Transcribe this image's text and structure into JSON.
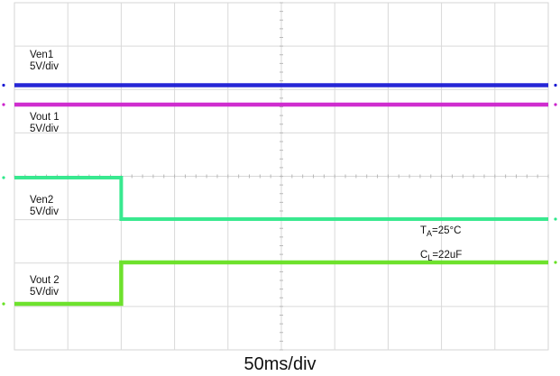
{
  "chart_data": {
    "type": "line",
    "title": "",
    "time_scale": "50ms/div",
    "xlim": [
      0,
      500
    ],
    "x_unit": "ms",
    "grid": true,
    "divisions": {
      "x": 10,
      "y": 8
    },
    "series": [
      {
        "name": "Ven1",
        "scale": "5V/div",
        "color": "#1a1ad4",
        "x": [
          0,
          500
        ],
        "y": [
          5,
          5
        ]
      },
      {
        "name": "Vout 1",
        "scale": "5V/div",
        "color": "#cc22cc",
        "x": [
          0,
          500
        ],
        "y": [
          5,
          5
        ]
      },
      {
        "name": "Ven2",
        "scale": "5V/div",
        "color": "#2ee88a",
        "x": [
          0,
          100,
          100,
          500
        ],
        "y": [
          5,
          5,
          0,
          0
        ]
      },
      {
        "name": "Vout 2",
        "scale": "5V/div",
        "color": "#66e022",
        "x": [
          0,
          100,
          100,
          500
        ],
        "y": [
          0,
          0,
          5,
          5
        ]
      }
    ],
    "annotations": [
      {
        "text": "TA=25°C",
        "main": "T",
        "sub": "A",
        "rest": "=25°C"
      },
      {
        "text": "CL=22uF",
        "main": "C",
        "sub": "L",
        "rest": "=22uF"
      }
    ]
  }
}
